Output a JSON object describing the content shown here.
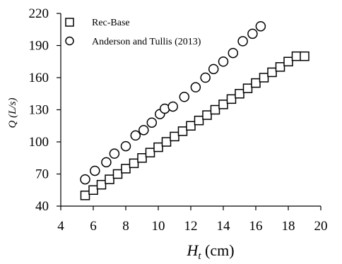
{
  "chart_data": {
    "type": "scatter",
    "xlabel_main": "H",
    "xlabel_sub": "t",
    "xlabel_unit": "(cm)",
    "ylabel_main": "Q",
    "ylabel_unit": "(L/s)",
    "xlim": [
      4,
      20
    ],
    "ylim": [
      40,
      220
    ],
    "x_ticks": [
      4,
      6,
      8,
      10,
      12,
      14,
      16,
      18,
      20
    ],
    "y_ticks": [
      40,
      70,
      100,
      130,
      160,
      190,
      220
    ],
    "grid": false,
    "legend_position": "top-left",
    "series": [
      {
        "name": "Rec-Base",
        "marker": "square",
        "x": [
          5.5,
          6.0,
          6.5,
          7.0,
          7.5,
          8.0,
          8.5,
          9.0,
          9.5,
          10.0,
          10.5,
          11.0,
          11.5,
          12.0,
          12.5,
          13.0,
          13.5,
          14.0,
          14.5,
          15.0,
          15.5,
          16.0,
          16.5,
          17.0,
          17.5,
          18.0,
          18.5,
          19.0
        ],
        "y": [
          50,
          55,
          60,
          65,
          70,
          75,
          80,
          85,
          90,
          95,
          100,
          105,
          110,
          115,
          120,
          125,
          130,
          135,
          140,
          145,
          150,
          155,
          160,
          165,
          170,
          175,
          180,
          180
        ]
      },
      {
        "name": "Anderson and Tullis (2013)",
        "marker": "circle",
        "x": [
          5.5,
          6.1,
          6.8,
          7.3,
          8.0,
          8.6,
          9.1,
          9.6,
          10.1,
          10.4,
          10.9,
          11.6,
          12.3,
          12.9,
          13.4,
          14.0,
          14.6,
          15.2,
          15.8,
          16.3
        ],
        "y": [
          65,
          73,
          81,
          89,
          96,
          106,
          111,
          118,
          126,
          131,
          133,
          142,
          151,
          160,
          168,
          175,
          183,
          194,
          201,
          208
        ]
      }
    ]
  }
}
